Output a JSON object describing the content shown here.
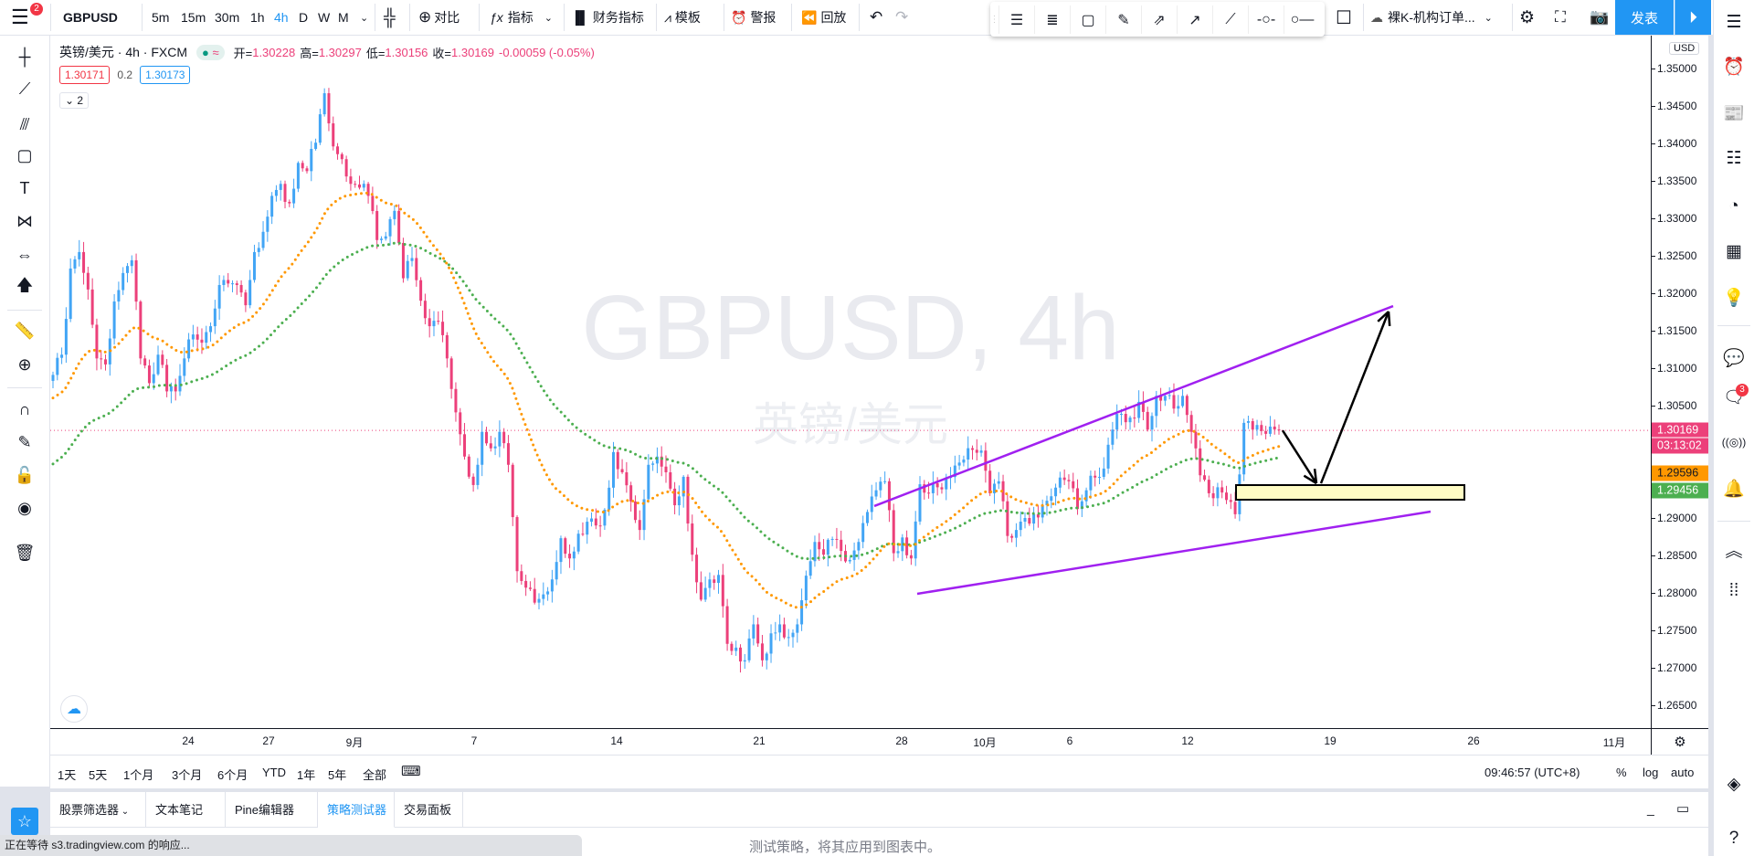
{
  "topbar": {
    "menu_badge": "2",
    "symbol": "GBPUSD",
    "intervals": [
      "5m",
      "15m",
      "30m",
      "1h",
      "4h",
      "D",
      "W",
      "M"
    ],
    "active_interval": "4h",
    "compare": "对比",
    "indicators": "指标",
    "financials": "财务指标",
    "templates": "模板",
    "alert": "警报",
    "replay": "回放",
    "layout_name": "裸K-机构订单...",
    "publish": "发表"
  },
  "legend": {
    "title": "英镑/美元 · 4h · FXCM",
    "open_label": "开=",
    "open": "1.30228",
    "high_label": "高=",
    "high": "1.30297",
    "low_label": "低=",
    "low": "1.30156",
    "close_label": "收=",
    "close": "1.30169",
    "change": "-0.00059 (-0.05%)",
    "sell_price": "1.30171",
    "spread": "0.2",
    "buy_price": "1.30173",
    "collapsed_count": "2"
  },
  "watermark": {
    "line1": "GBPUSD, 4h",
    "line2": "英镑/美元"
  },
  "colors": {
    "up": "#42a5f5",
    "down": "#ec407a",
    "ma_fast": "#ff9800",
    "ma_slow": "#4caf50",
    "trend_lines": "#a020f0",
    "zone_fill": "#fffcc4",
    "accent": "#2196f3"
  },
  "chart_data": {
    "type": "candlestick",
    "currency": "USD",
    "y_ticks": [
      "1.35000",
      "1.34500",
      "1.34000",
      "1.33500",
      "1.33000",
      "1.32500",
      "1.32000",
      "1.31500",
      "1.31000",
      "1.30500",
      "1.29000",
      "1.28500",
      "1.28000",
      "1.27500",
      "1.27000",
      "1.26500"
    ],
    "x_ticks": [
      "24",
      "27",
      "9月",
      "7",
      "14",
      "21",
      "28",
      "10月",
      "6",
      "12",
      "19",
      "26",
      "11月"
    ],
    "close_path": [
      1.3091,
      1.3118,
      1.3233,
      1.3255,
      1.3205,
      1.3113,
      1.3105,
      1.3189,
      1.3227,
      1.3244,
      1.3113,
      1.308,
      1.3118,
      1.3069,
      1.3069,
      1.3113,
      1.3145,
      1.3134,
      1.3156,
      1.3211,
      1.3213,
      1.3211,
      1.3184,
      1.3255,
      1.3282,
      1.333,
      1.3346,
      1.332,
      1.3374,
      1.3363,
      1.3401,
      1.3467,
      1.3396,
      1.3379,
      1.3346,
      1.3341,
      1.333,
      1.3271,
      1.3276,
      1.331,
      1.322,
      1.3247,
      1.319,
      1.3156,
      1.3162,
      1.3113,
      1.3041,
      1.2982,
      1.2944,
      1.3015,
      1.2993,
      1.3015,
      1.2971,
      1.2829,
      1.2807,
      1.2787,
      1.2798,
      1.2818,
      1.2873,
      1.2846,
      1.2879,
      1.2895,
      1.289,
      1.2911,
      1.2988,
      1.2961,
      1.2922,
      1.2884,
      1.2971,
      1.2982,
      1.2961,
      1.2917,
      1.2955,
      1.2851,
      1.2791,
      1.2818,
      1.2824,
      1.2732,
      1.2727,
      1.271,
      1.2758,
      1.271,
      1.2746,
      1.2758,
      1.2741,
      1.2758,
      1.2823,
      1.2868,
      1.2851,
      1.2872,
      1.2856,
      1.2844,
      1.2868,
      1.2908,
      1.2937,
      1.2949,
      1.2853,
      1.2874,
      1.2846,
      1.2945,
      1.2933,
      1.2941,
      1.2954,
      1.297,
      1.2978,
      1.2991,
      1.299,
      1.2933,
      1.2949,
      1.2876,
      1.2884,
      1.29,
      1.2905,
      1.2917,
      1.2929,
      1.2954,
      1.2949,
      1.2912,
      1.2937,
      1.2954,
      1.2966,
      1.3018,
      1.3039,
      1.3034,
      1.3055,
      1.3018,
      1.3063,
      1.3063,
      1.3046,
      1.3063,
      1.3015,
      1.2957,
      1.2933,
      1.2941,
      1.2924,
      1.2905,
      1.3027,
      1.3018,
      1.3016,
      1.3022,
      1.30169
    ],
    "ma_start": {
      "fast": 1.3058,
      "slow": 1.2968
    },
    "last_price": "1.30169",
    "countdown": "03:13:02",
    "ma_fast_value": "1.29596",
    "ma_slow_value": "1.29456",
    "drawings": {
      "upper_trendline": [
        1.29159,
        1.31829
      ],
      "lower_trendline": [
        1.27988,
        1.29085
      ],
      "zone": [
        1.29439,
        1.29244
      ],
      "arrow_down": [
        1.30169,
        1.29463
      ],
      "arrow_up": [
        1.29463,
        1.31756
      ]
    }
  },
  "timeaxis": {
    "clock": "09:46:57 (UTC+8)",
    "percent": "%",
    "log": "log",
    "auto": "auto"
  },
  "ranges": [
    "1天",
    "5天",
    "1个月",
    "3个月",
    "6个月",
    "YTD",
    "1年",
    "5年",
    "全部"
  ],
  "panel": {
    "tabs": [
      "股票筛选器",
      "文本笔记",
      "Pine编辑器",
      "策略测试器",
      "交易面板"
    ],
    "active_tab": "策略测试器",
    "message": "测试策略，将其应用到图表中。"
  },
  "rightbar": {
    "chat_badge": "3"
  },
  "status": "正在等待 s3.tradingview.com 的响应..."
}
